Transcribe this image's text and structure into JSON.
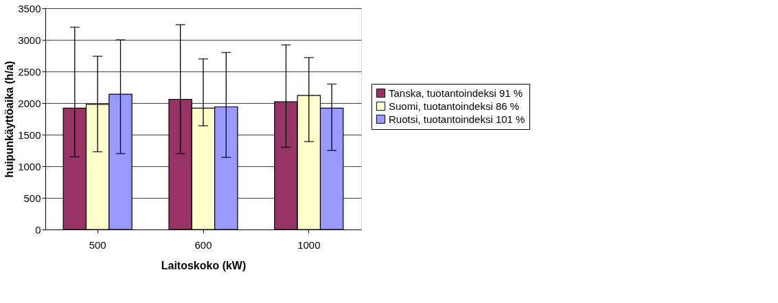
{
  "chart_data": {
    "type": "bar",
    "xlabel": "Laitoskoko (kW)",
    "ylabel": "huipunkäyttöaika (h/a)",
    "categories": [
      "500",
      "600",
      "1000"
    ],
    "series": [
      {
        "name": "Tanska, tuotantoindeksi 91 %",
        "color": "#993366",
        "values": [
          1920,
          2060,
          2020
        ],
        "errors": [
          [
            1150,
            3200
          ],
          [
            1200,
            3240
          ],
          [
            1300,
            2920
          ]
        ]
      },
      {
        "name": "Suomi, tuotantoindeksi 86 %",
        "color": "#ffffcc",
        "values": [
          1980,
          1920,
          2120
        ],
        "errors": [
          [
            1230,
            2740
          ],
          [
            1640,
            2700
          ],
          [
            1390,
            2720
          ]
        ]
      },
      {
        "name": "Ruotsi, tuotantoindeksi 101 %",
        "color": "#9999ff",
        "values": [
          2140,
          1940,
          1920
        ],
        "errors": [
          [
            1200,
            3000
          ],
          [
            1140,
            2800
          ],
          [
            1250,
            2300
          ]
        ]
      }
    ],
    "ylim": [
      0,
      3500
    ],
    "yticks": [
      0,
      500,
      1000,
      1500,
      2000,
      2500,
      3000,
      3500
    ],
    "grid": "y",
    "legend": "right"
  }
}
